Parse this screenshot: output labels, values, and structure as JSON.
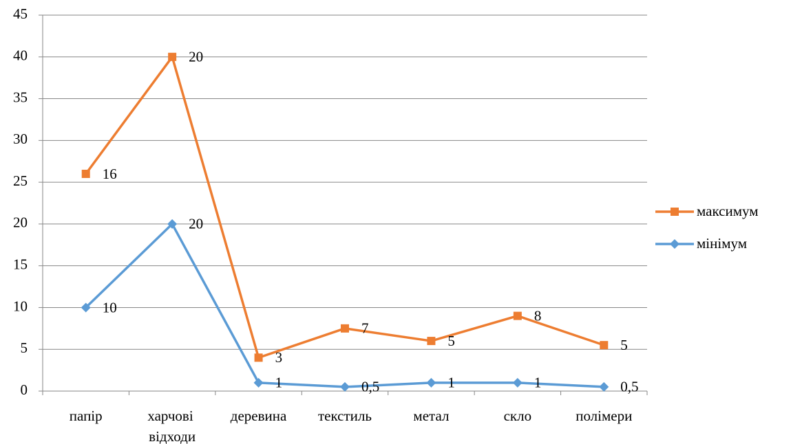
{
  "chart_data": {
    "type": "line",
    "stacked": true,
    "categories": [
      "папір",
      "харчові відходи",
      "деревина",
      "текстиль",
      "метал",
      "скло",
      "полімери"
    ],
    "series": [
      {
        "name": "мінімум",
        "color": "#5b9bd5",
        "marker": "diamond",
        "values": [
          10,
          20,
          1,
          0.5,
          1,
          1,
          0.5
        ],
        "value_labels": [
          "10",
          "20",
          "1",
          "0,5",
          "1",
          "1",
          "0,5"
        ]
      },
      {
        "name": "максимум",
        "color": "#ed7d31",
        "marker": "square",
        "values": [
          16,
          20,
          3,
          7,
          5,
          8,
          5
        ]
      }
    ],
    "ylim": [
      0,
      45
    ],
    "yticks": [
      0,
      5,
      10,
      15,
      20,
      25,
      30,
      35,
      40,
      45
    ],
    "grid": true,
    "legend": "right"
  }
}
